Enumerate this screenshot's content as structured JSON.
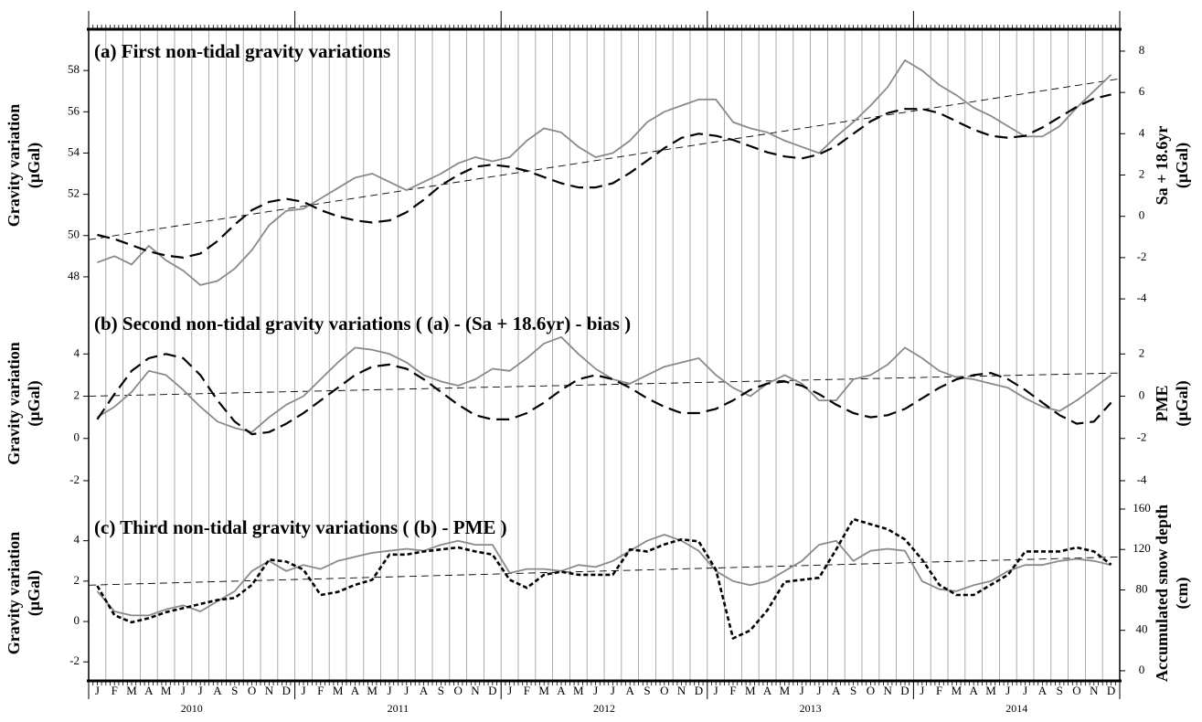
{
  "x_axis": {
    "categories": [
      "J",
      "F",
      "M",
      "A",
      "M",
      "J",
      "J",
      "A",
      "S",
      "O",
      "N",
      "D",
      "J",
      "F",
      "M",
      "A",
      "M",
      "J",
      "J",
      "A",
      "S",
      "O",
      "N",
      "D",
      "J",
      "F",
      "M",
      "A",
      "M",
      "J",
      "J",
      "A",
      "S",
      "O",
      "N",
      "D",
      "J",
      "F",
      "M",
      "A",
      "M",
      "J",
      "J",
      "A",
      "S",
      "O",
      "N",
      "D",
      "J",
      "F",
      "M",
      "A",
      "M",
      "J",
      "J",
      "A",
      "S",
      "O",
      "N",
      "D"
    ],
    "years": [
      "2010",
      "2011",
      "2012",
      "2013",
      "2014"
    ]
  },
  "chart_data": [
    {
      "type": "line",
      "title": "(a) First non-tidal gravity variations",
      "ylabel": [
        "Gravity variation",
        "(μGal)"
      ],
      "y2label": [
        "Sa + 18.6yr",
        "(μGal)"
      ],
      "ylim": [
        46.8,
        60.0
      ],
      "yticks": [
        48,
        50,
        52,
        54,
        56,
        58
      ],
      "y2lim": [
        -4.13,
        9.06
      ],
      "y2ticks": [
        -4,
        -2,
        0,
        2,
        4,
        6,
        8
      ],
      "series": [
        {
          "color": "#8a8a8a",
          "style": "solid",
          "values": [
            48.7,
            49.0,
            48.6,
            49.5,
            48.8,
            48.3,
            47.6,
            47.8,
            48.4,
            49.3,
            50.5,
            51.2,
            51.3,
            51.8,
            52.3,
            52.8,
            53.0,
            52.6,
            52.2,
            52.6,
            53.0,
            53.5,
            53.8,
            53.6,
            53.8,
            54.6,
            55.2,
            55.0,
            54.3,
            53.8,
            54.0,
            54.6,
            55.5,
            56.0,
            56.3,
            56.6,
            56.6,
            55.5,
            55.2,
            55.0,
            54.6,
            54.3,
            54.0,
            54.8,
            55.5,
            56.3,
            57.2,
            58.5,
            58.0,
            57.3,
            56.8,
            56.2,
            55.8,
            55.3,
            54.8,
            54.8,
            55.3,
            56.2,
            57.0,
            57.8
          ]
        },
        {
          "color": "#000000",
          "style": "dashed",
          "axis": "y2",
          "values": [
            -0.9,
            -1.1,
            -1.4,
            -1.7,
            -1.9,
            -2.0,
            -1.8,
            -1.2,
            -0.4,
            0.3,
            0.7,
            0.85,
            0.7,
            0.3,
            0,
            -0.2,
            -0.3,
            -0.2,
            0.2,
            0.8,
            1.5,
            2.0,
            2.4,
            2.5,
            2.4,
            2.2,
            1.9,
            1.6,
            1.4,
            1.4,
            1.6,
            2.1,
            2.7,
            3.3,
            3.8,
            4.0,
            3.9,
            3.7,
            3.4,
            3.1,
            2.9,
            2.8,
            3.0,
            3.4,
            4.0,
            4.6,
            5.0,
            5.2,
            5.2,
            5.0,
            4.6,
            4.2,
            3.9,
            3.8,
            3.9,
            4.3,
            4.8,
            5.3,
            5.7,
            5.9
          ]
        }
      ],
      "trend": {
        "color": "#000000",
        "style": "thin-dashed",
        "values": [
          49.8,
          57.6
        ]
      }
    },
    {
      "type": "line",
      "title": "(b) Second non-tidal gravity variations ( (a) - (Sa + 18.6yr) - bias )",
      "ylabel": [
        "Gravity variation",
        "(μGal)"
      ],
      "y2label": [
        "PME",
        "(μGal)"
      ],
      "ylim": [
        -3.17,
        6.48
      ],
      "yticks": [
        -2,
        0,
        2,
        4
      ],
      "y2lim": [
        -5.17,
        4.48
      ],
      "y2ticks": [
        -4,
        -2,
        0,
        2
      ],
      "series": [
        {
          "color": "#8a8a8a",
          "style": "solid",
          "values": [
            1.0,
            1.5,
            2.2,
            3.2,
            3.0,
            2.3,
            1.5,
            0.8,
            0.5,
            0.3,
            1.0,
            1.6,
            2.0,
            2.8,
            3.6,
            4.3,
            4.2,
            4.0,
            3.6,
            3.0,
            2.7,
            2.5,
            2.8,
            3.3,
            3.2,
            3.8,
            4.5,
            4.8,
            4.0,
            3.3,
            2.8,
            2.6,
            3.0,
            3.4,
            3.6,
            3.8,
            3.0,
            2.4,
            2.0,
            2.6,
            3.0,
            2.6,
            1.8,
            1.8,
            2.8,
            3.0,
            3.5,
            4.3,
            3.8,
            3.2,
            2.9,
            2.8,
            2.6,
            2.4,
            1.9,
            1.5,
            1.3,
            1.8,
            2.4,
            3.0
          ]
        },
        {
          "color": "#000000",
          "style": "dashed",
          "axis": "y2",
          "values": [
            -1.1,
            0.1,
            1.2,
            1.8,
            2.0,
            1.8,
            1.0,
            -0.2,
            -1.2,
            -1.8,
            -1.7,
            -1.3,
            -0.8,
            -0.2,
            0.4,
            1.0,
            1.4,
            1.5,
            1.3,
            0.8,
            0.2,
            -0.4,
            -0.9,
            -1.1,
            -1.1,
            -0.8,
            -0.3,
            0.3,
            0.8,
            1.0,
            0.8,
            0.4,
            -0.1,
            -0.5,
            -0.8,
            -0.8,
            -0.6,
            -0.2,
            0.3,
            0.6,
            0.7,
            0.5,
            0.1,
            -0.4,
            -0.8,
            -1.0,
            -0.9,
            -0.6,
            -0.1,
            0.4,
            0.8,
            1.0,
            1.1,
            0.8,
            0.3,
            -0.3,
            -0.9,
            -1.3,
            -1.2,
            -0.3
          ]
        }
      ],
      "trend": {
        "color": "#000000",
        "style": "thin-dashed",
        "values": [
          2.0,
          3.1
        ]
      }
    },
    {
      "type": "line",
      "title": "(c) Third non-tidal gravity variations ( (b) - PME )",
      "ylabel": [
        "Gravity variation",
        "(μGal)"
      ],
      "y2label": [
        "Accumulated snow depth",
        "(cm)"
      ],
      "ylim": [
        -2.94,
        5.75
      ],
      "yticks": [
        -2,
        0,
        2,
        4
      ],
      "y2lim": [
        -10,
        163.6
      ],
      "y2ticks": [
        0,
        40,
        80,
        120,
        160
      ],
      "series": [
        {
          "color": "#8a8a8a",
          "style": "solid",
          "values": [
            1.5,
            0.5,
            0.3,
            0.3,
            0.6,
            0.8,
            0.5,
            1.0,
            1.5,
            2.5,
            3.0,
            2.5,
            2.8,
            2.6,
            3.0,
            3.2,
            3.4,
            3.5,
            3.6,
            3.5,
            3.8,
            4.0,
            3.8,
            3.8,
            2.4,
            2.6,
            2.6,
            2.5,
            2.8,
            2.7,
            3.0,
            3.5,
            4.0,
            4.3,
            4.0,
            3.5,
            2.5,
            2.0,
            1.8,
            2.0,
            2.5,
            3.0,
            3.8,
            4.0,
            3.0,
            3.5,
            3.6,
            3.5,
            2.0,
            1.6,
            1.5,
            1.8,
            2.0,
            2.5,
            2.8,
            2.8,
            3.0,
            3.1,
            3.0,
            2.8
          ]
        },
        {
          "color": "#000000",
          "style": "dotted",
          "axis": "y2",
          "values": [
            84,
            55,
            48,
            52,
            58,
            62,
            66,
            70,
            72,
            85,
            110,
            108,
            100,
            75,
            78,
            85,
            90,
            115,
            115,
            118,
            120,
            122,
            118,
            115,
            90,
            82,
            95,
            98,
            95,
            95,
            95,
            120,
            118,
            125,
            130,
            128,
            100,
            32,
            40,
            60,
            88,
            90,
            92,
            120,
            150,
            145,
            140,
            130,
            110,
            85,
            75,
            75,
            85,
            95,
            118,
            118,
            118,
            122,
            118,
            105
          ]
        }
      ],
      "trend": {
        "color": "#000000",
        "style": "thin-dashed",
        "values": [
          1.8,
          3.2
        ]
      }
    }
  ]
}
